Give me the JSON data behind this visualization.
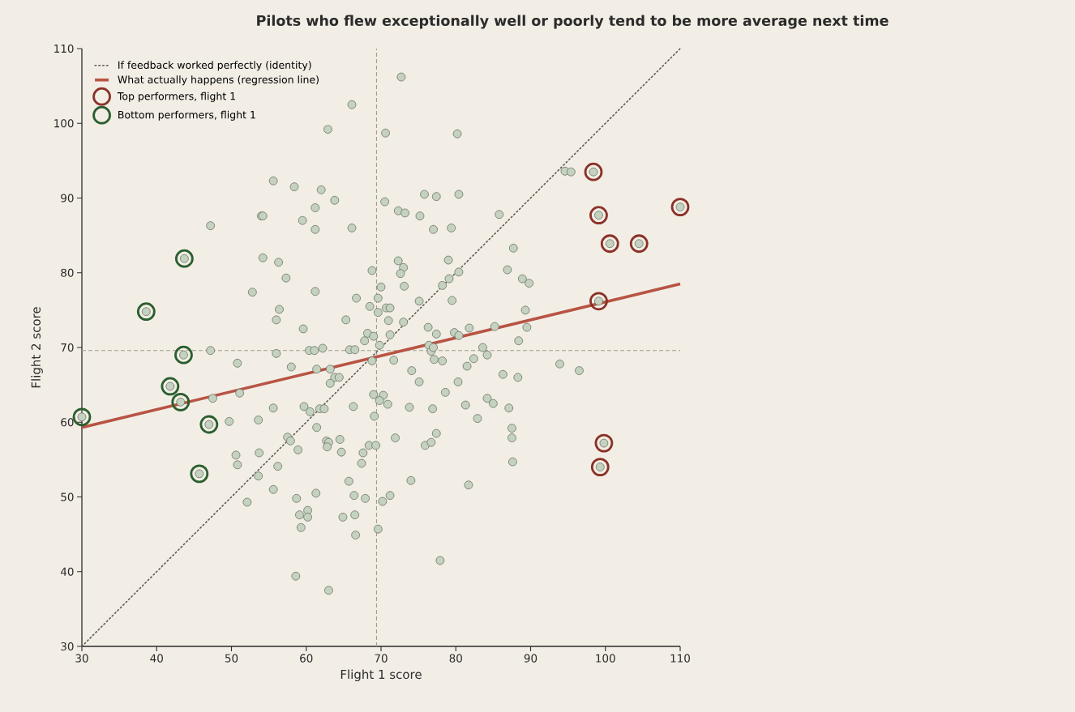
{
  "chart_data": {
    "type": "scatter",
    "title": "Pilots who flew exceptionally well or poorly tend to be more average next time",
    "xlabel": "Flight 1 score",
    "ylabel": "Flight 2 score",
    "xlim": [
      30,
      110
    ],
    "ylim": [
      30,
      110
    ],
    "xticks": [
      30,
      40,
      50,
      60,
      70,
      80,
      90,
      100,
      110
    ],
    "yticks": [
      30,
      40,
      50,
      60,
      70,
      80,
      90,
      100,
      110
    ],
    "legend": "top left",
    "ref_lines": [
      {
        "axis": "x",
        "value": 69.4,
        "color": "#a09d90",
        "line_style": "dashed"
      },
      {
        "axis": "y",
        "value": 69.6,
        "color": "#a09d90",
        "line_style": "dashed"
      }
    ],
    "series": [
      {
        "name": "If feedback worked perfectly (identity)",
        "type": "line",
        "color": "#5e5a50",
        "line_style": "dotted",
        "marker": "none",
        "x": [
          30,
          110
        ],
        "values": [
          30,
          110
        ]
      },
      {
        "name": "What actually happens (regression line)",
        "type": "line",
        "color": "#b85444",
        "line_style": "solid",
        "marker": "none",
        "x": [
          30,
          110
        ],
        "values": [
          59.3,
          78.5
        ]
      },
      {
        "color": "#c4d2bf",
        "marker": "circle",
        "x": [
          72.7,
          66.1,
          62.9,
          70.6,
          80.2,
          55.6,
          58.4,
          62.0,
          63.8,
          70.5,
          75.8,
          77.4,
          80.4,
          61.2,
          72.3,
          73.2,
          54.0,
          54.2,
          59.5,
          75.2,
          85.8,
          47.2,
          66.1,
          61.2,
          77.0,
          79.4,
          87.7,
          54.2,
          56.3,
          72.3,
          73.0,
          79.0,
          68.8,
          72.6,
          80.4,
          86.9,
          57.3,
          79.1,
          78.2,
          88.9,
          89.8,
          70.0,
          73.1,
          61.2,
          52.8,
          66.7,
          69.6,
          75.1,
          79.5,
          56.4,
          68.5,
          69.6,
          70.7,
          71.2,
          89.3,
          56.0,
          65.3,
          71.0,
          73.0,
          59.6,
          76.3,
          81.8,
          85.2,
          89.5,
          68.2,
          69.0,
          71.2,
          77.4,
          79.8,
          80.4,
          88.4,
          67.8,
          69.8,
          76.4,
          76.7,
          77.0,
          83.6,
          47.2,
          56.0,
          60.4,
          61.1,
          62.2,
          65.8,
          66.5,
          84.2,
          71.7,
          68.8,
          77.1,
          78.2,
          82.4,
          93.9,
          96.5,
          50.8,
          58.0,
          61.4,
          63.2,
          74.1,
          81.5,
          86.3,
          63.8,
          64.4,
          63.2,
          75.1,
          80.3,
          88.3,
          69.0,
          70.3,
          78.6,
          47.5,
          51.1,
          69.8,
          70.9,
          84.2,
          85.0,
          81.3,
          87.1,
          55.6,
          59.7,
          61.8,
          62.4,
          66.3,
          73.8,
          76.9,
          60.5,
          69.1,
          53.6,
          49.7,
          82.9,
          87.5,
          61.4,
          77.4,
          71.9,
          57.5,
          57.9,
          62.7,
          63.0,
          64.5,
          87.5,
          62.8,
          75.9,
          76.7,
          68.4,
          69.3,
          58.9,
          64.7,
          67.6,
          50.6,
          53.7,
          87.6,
          67.4,
          50.8,
          56.2,
          53.6,
          65.7,
          74.0,
          81.7,
          55.6,
          61.3,
          66.4,
          71.2,
          58.7,
          67.9,
          52.1,
          70.2,
          60.2,
          59.1,
          60.2,
          64.9,
          66.5,
          59.3,
          69.6,
          66.6,
          77.9,
          58.6,
          63.0,
          94.6,
          95.4,
          98.4,
          99.1,
          100.6,
          104.5,
          99.1,
          99.8,
          99.3,
          110,
          30,
          38.6,
          43.7,
          43.6,
          41.8,
          43.2,
          47.0,
          45.7
        ],
        "values": [
          106.2,
          102.5,
          99.2,
          98.7,
          98.6,
          92.3,
          91.5,
          91.1,
          89.7,
          89.5,
          90.5,
          90.2,
          90.5,
          88.7,
          88.3,
          88.0,
          87.6,
          87.6,
          87.0,
          87.6,
          87.8,
          86.3,
          86.0,
          85.8,
          85.8,
          86.0,
          83.3,
          82.0,
          81.4,
          81.6,
          80.7,
          81.7,
          80.3,
          79.9,
          80.1,
          80.4,
          79.3,
          79.2,
          78.3,
          79.2,
          78.6,
          78.1,
          78.2,
          77.5,
          77.4,
          76.6,
          76.6,
          76.2,
          76.3,
          75.1,
          75.5,
          74.7,
          75.3,
          75.3,
          75.0,
          73.7,
          73.7,
          73.6,
          73.4,
          72.5,
          72.7,
          72.6,
          72.8,
          72.7,
          71.9,
          71.5,
          71.7,
          71.8,
          72.0,
          71.6,
          70.9,
          70.9,
          70.3,
          70.3,
          69.5,
          70.0,
          70.0,
          69.6,
          69.2,
          69.6,
          69.6,
          69.9,
          69.7,
          69.7,
          69.0,
          68.3,
          68.2,
          68.4,
          68.2,
          68.5,
          67.8,
          66.9,
          67.9,
          67.4,
          67.1,
          67.1,
          66.9,
          67.5,
          66.4,
          66.0,
          66.0,
          65.2,
          65.4,
          65.4,
          66.0,
          63.7,
          63.6,
          64.0,
          63.2,
          63.9,
          62.9,
          62.4,
          63.2,
          62.5,
          62.3,
          61.9,
          61.9,
          62.1,
          61.8,
          61.8,
          62.1,
          62.0,
          61.8,
          61.4,
          60.8,
          60.3,
          60.1,
          60.5,
          59.2,
          59.3,
          58.5,
          57.9,
          58.0,
          57.5,
          57.5,
          57.3,
          57.7,
          57.9,
          56.7,
          56.9,
          57.3,
          56.9,
          56.9,
          56.3,
          56.0,
          55.9,
          55.6,
          55.9,
          54.7,
          54.5,
          54.3,
          54.1,
          52.8,
          52.1,
          52.2,
          51.6,
          51.0,
          50.5,
          50.2,
          50.2,
          49.8,
          49.8,
          49.3,
          49.4,
          48.2,
          47.6,
          47.3,
          47.3,
          47.6,
          45.9,
          45.7,
          44.9,
          41.5,
          39.4,
          37.5,
          93.6,
          93.5,
          93.5,
          87.7,
          83.9,
          83.9,
          76.2,
          57.2,
          54.0,
          88.8,
          60.7,
          74.8,
          81.9,
          69.0,
          64.8,
          62.7,
          59.7,
          53.1
        ]
      },
      {
        "name": "Top performers, flight 1",
        "type": "scatter",
        "color": "#8b3228",
        "marker": "circle",
        "x": [
          98.4,
          99.1,
          100.6,
          104.5,
          99.1,
          99.8,
          99.3,
          110
        ],
        "values": [
          93.5,
          87.7,
          83.9,
          83.9,
          76.2,
          57.2,
          54.0,
          88.8
        ]
      },
      {
        "name": "Bottom performers, flight 1",
        "type": "scatter",
        "color": "#2b5e2e",
        "marker": "circle",
        "x": [
          30,
          38.6,
          43.7,
          43.6,
          41.8,
          43.2,
          47.0,
          45.7
        ],
        "values": [
          60.7,
          74.8,
          81.9,
          69.0,
          64.8,
          62.7,
          59.7,
          53.1
        ]
      }
    ]
  }
}
